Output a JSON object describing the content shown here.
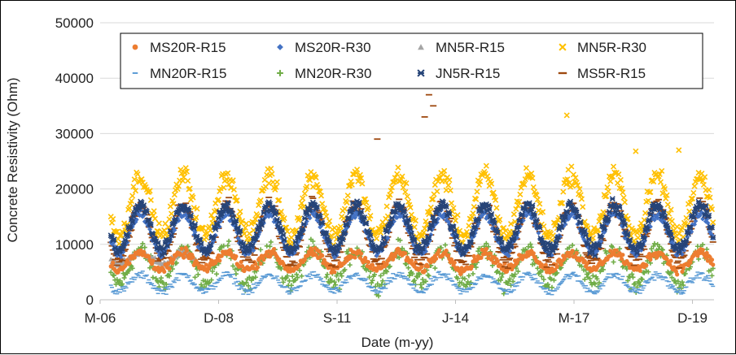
{
  "chart_data": {
    "type": "scatter",
    "title": "",
    "xlabel": "Date (m-yy)",
    "ylabel": "Concrete Resistivity (Ohm)",
    "x_ticks": [
      "M-06",
      "D-08",
      "S-11",
      "J-14",
      "M-17",
      "D-19"
    ],
    "x_tick_dates": [
      "2006-03",
      "2008-12",
      "2011-09",
      "2014-06",
      "2017-03",
      "2019-12"
    ],
    "xlim": [
      "2006-03",
      "2020-06"
    ],
    "y_ticks": [
      0,
      10000,
      20000,
      30000,
      40000,
      50000
    ],
    "ylim": [
      0,
      50000
    ],
    "legend_position": "top-inside",
    "series": [
      {
        "name": "MS20R-R15",
        "marker": "circle",
        "color": "#ED7D31",
        "start": "2006-06",
        "end": "2020-06",
        "base": 7000,
        "amplitude": 1500,
        "noise": 1200
      },
      {
        "name": "MS20R-R30",
        "marker": "diamond",
        "color": "#4472C4",
        "start": "2006-06",
        "end": "2020-06",
        "base": 12000,
        "amplitude": 3500,
        "noise": 1200
      },
      {
        "name": "MN5R-R15",
        "marker": "triangle",
        "color": "#A5A5A5",
        "start": "2006-06",
        "end": "2008-06",
        "base": 7500,
        "amplitude": 1000,
        "noise": 800
      },
      {
        "name": "MN5R-R30",
        "marker": "x",
        "color": "#FFC000",
        "start": "2006-06",
        "end": "2020-06",
        "base": 17000,
        "amplitude": 5500,
        "noise": 2500,
        "outliers": [
          [
            2017.0,
            33300
          ],
          [
            2019.6,
            27000
          ],
          [
            2018.6,
            26800
          ]
        ]
      },
      {
        "name": "MN20R-R15",
        "marker": "dash",
        "color": "#5B9BD5",
        "start": "2006-06",
        "end": "2020-06",
        "base": 3000,
        "amplitude": 1500,
        "noise": 1000
      },
      {
        "name": "MN20R-R30",
        "marker": "plus",
        "color": "#70AD47",
        "start": "2006-06",
        "end": "2020-06",
        "base": 6000,
        "amplitude": 3000,
        "noise": 2500
      },
      {
        "name": "JN5R-R15",
        "marker": "star",
        "color": "#264478",
        "start": "2006-06",
        "end": "2020-06",
        "base": 13000,
        "amplitude": 4000,
        "noise": 1500
      },
      {
        "name": "MS5R-R15",
        "marker": "hline",
        "color": "#9E480E",
        "start": "2006-06",
        "end": "2020-06",
        "base": 12000,
        "amplitude": 5000,
        "noise": 2000,
        "outliers": [
          [
            2013.8,
            37000
          ],
          [
            2013.9,
            35000
          ],
          [
            2013.7,
            33000
          ],
          [
            2012.6,
            29000
          ]
        ]
      }
    ]
  }
}
